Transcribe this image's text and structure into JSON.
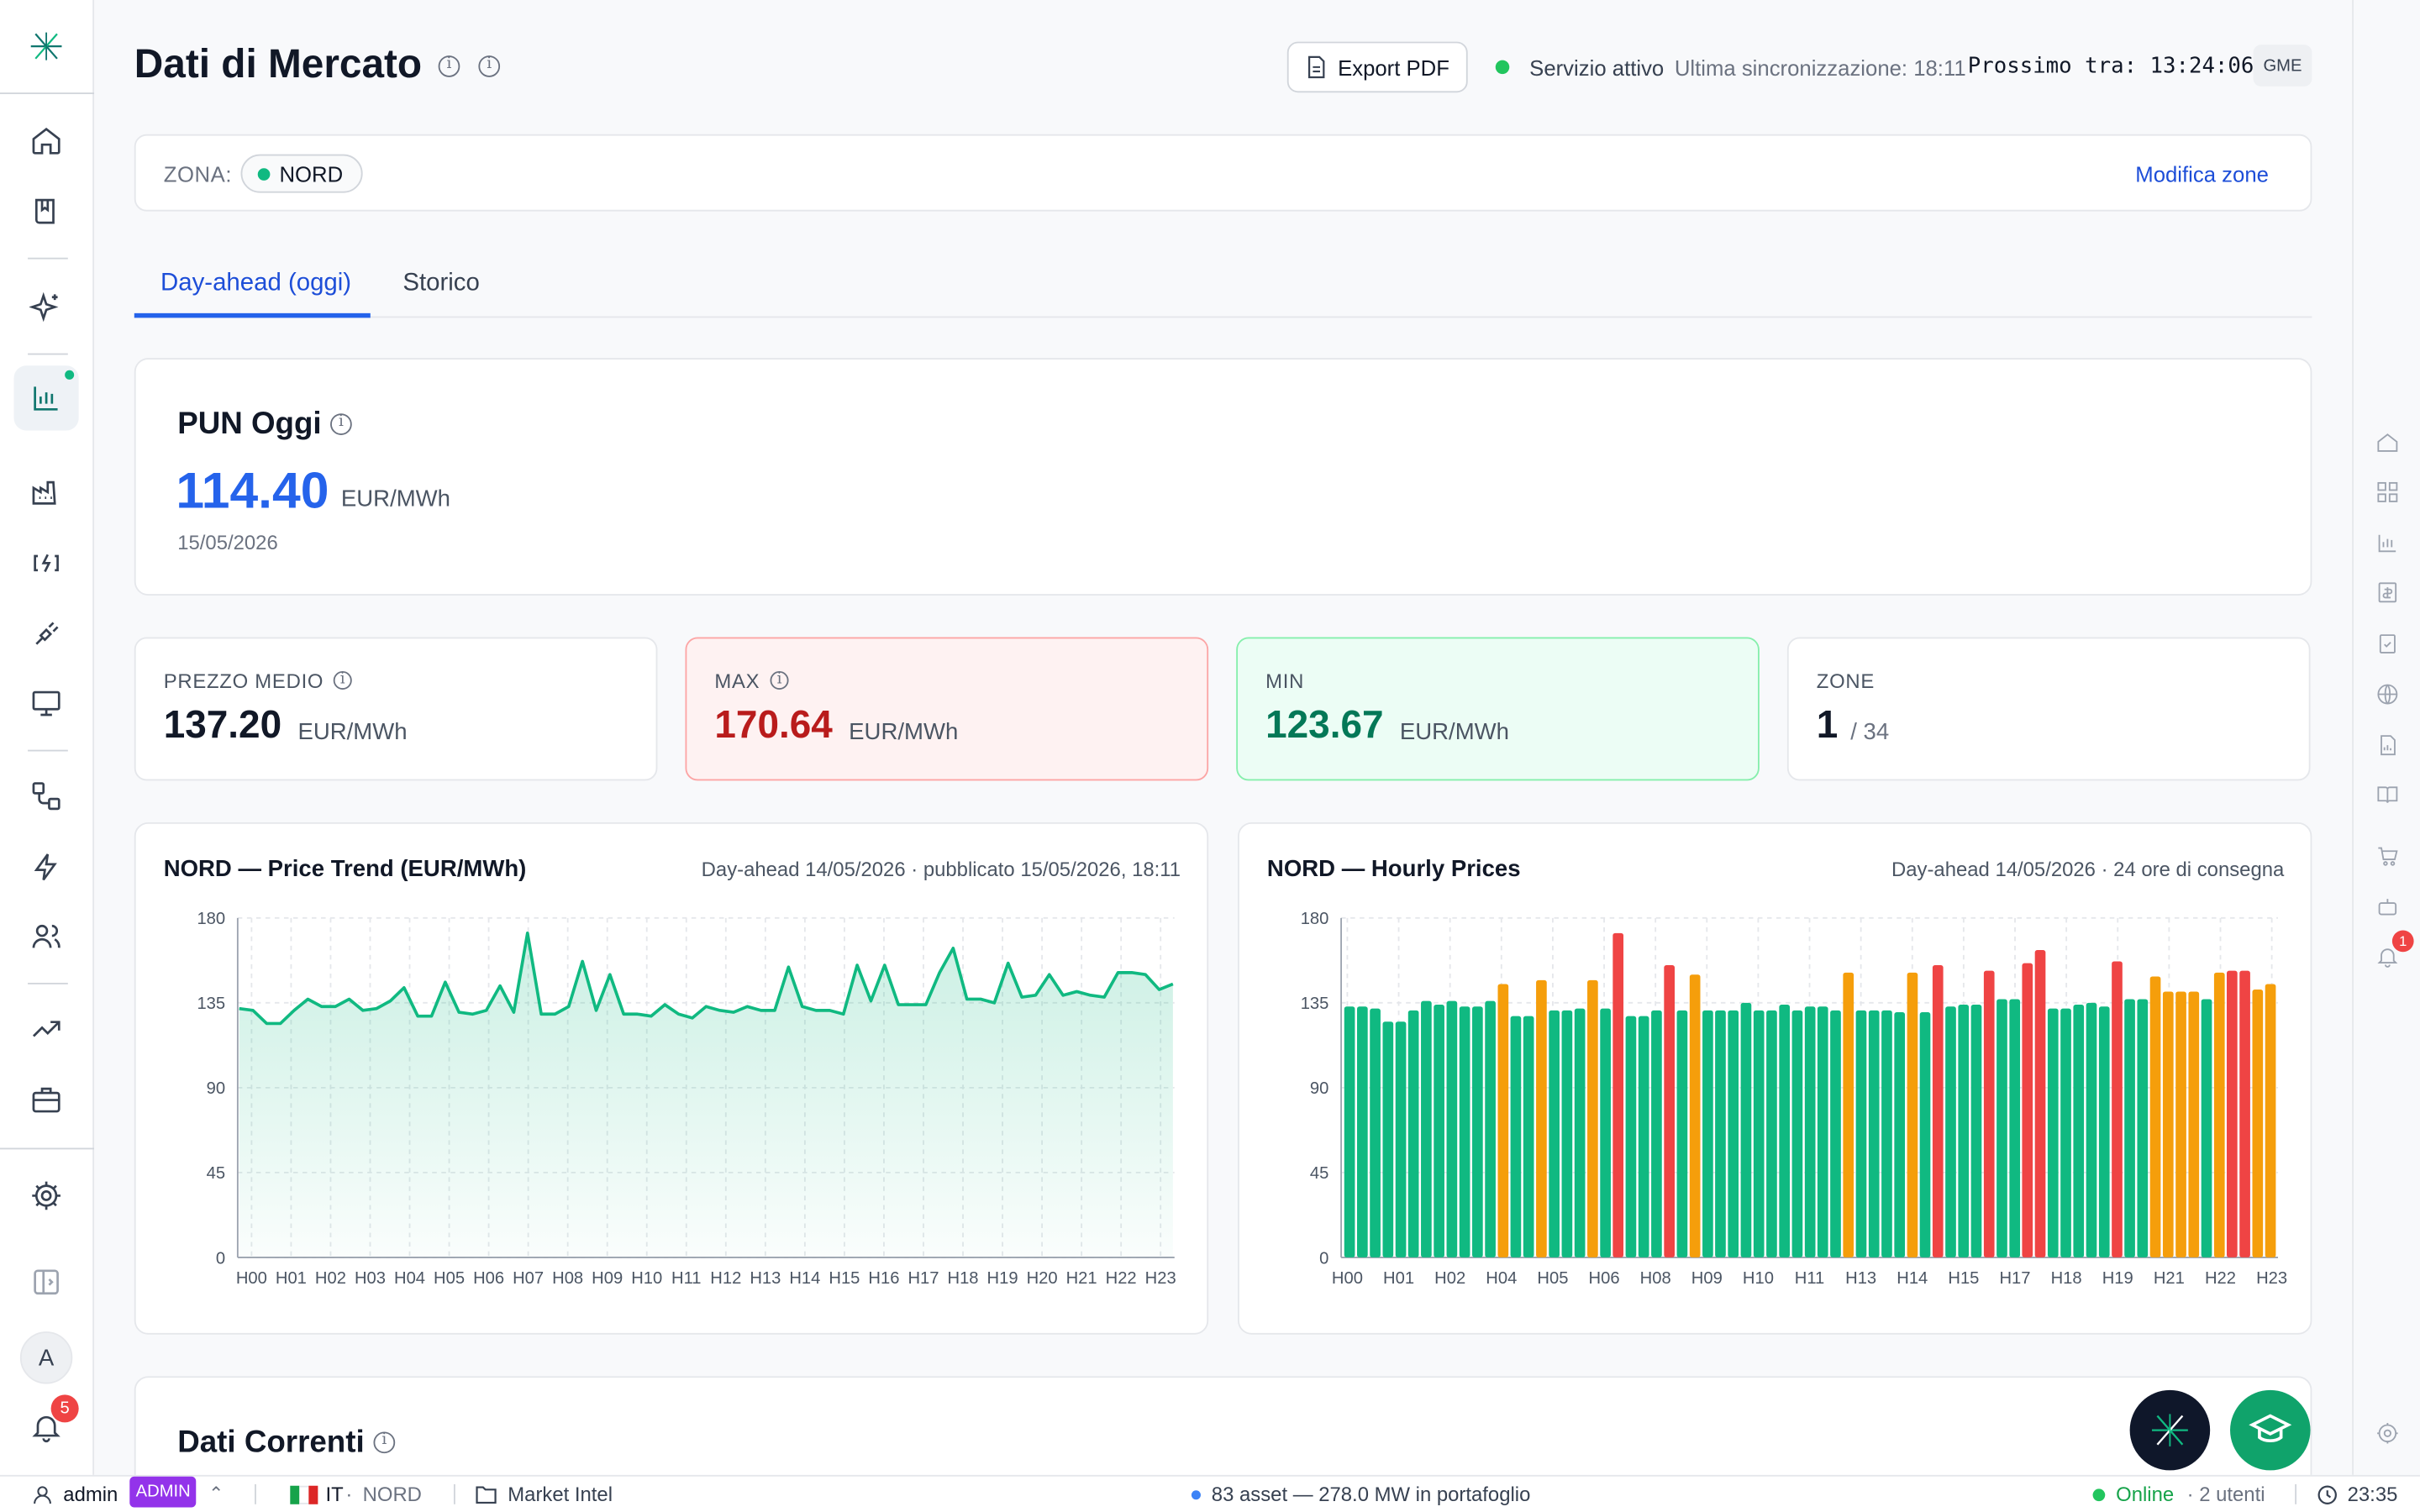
{
  "header": {
    "title": "Dati di Mercato",
    "export_label": "Export PDF",
    "status": "Servizio attivo",
    "last_sync": "Ultima sincronizzazione: 18:11",
    "next_sync": "Prossimo tra: 13:24:06",
    "source_badge": "GME"
  },
  "zone": {
    "label": "ZONA:",
    "selected": "NORD",
    "edit_label": "Modifica zone"
  },
  "tabs": [
    {
      "label": "Day-ahead (oggi)",
      "active": true
    },
    {
      "label": "Storico",
      "active": false
    }
  ],
  "pun": {
    "title": "PUN Oggi",
    "value": "114.40",
    "unit": "EUR/MWh",
    "date": "15/05/2026"
  },
  "stats": {
    "avg": {
      "label": "PREZZO MEDIO",
      "value": "137.20",
      "unit": "EUR/MWh"
    },
    "max": {
      "label": "MAX",
      "value": "170.64",
      "unit": "EUR/MWh"
    },
    "min": {
      "label": "MIN",
      "value": "123.67",
      "unit": "EUR/MWh"
    },
    "zones": {
      "label": "ZONE",
      "value": "1",
      "total": "/ 34"
    }
  },
  "charts": {
    "trend": {
      "title": "NORD — Price Trend (EUR/MWh)",
      "subtitle": "Day-ahead 14/05/2026 · pubblicato 15/05/2026, 18:11"
    },
    "hourly": {
      "title": "NORD — Hourly Prices",
      "subtitle": "Day-ahead 14/05/2026 · 24 ore di consegna"
    }
  },
  "chart_data": [
    {
      "type": "area",
      "title": "NORD — Price Trend (EUR/MWh)",
      "ylim": [
        0,
        180
      ],
      "yticks": [
        0,
        45,
        90,
        135,
        180
      ],
      "x_tick_labels": [
        "H00",
        "H01",
        "H02",
        "H03",
        "H04",
        "H05",
        "H06",
        "H07",
        "H08",
        "H09",
        "H10",
        "H11",
        "H12",
        "H13",
        "H14",
        "H15",
        "H16",
        "H17",
        "H18",
        "H19",
        "H20",
        "H21",
        "H22",
        "H23"
      ],
      "grid": true,
      "color": "#10b981",
      "values": [
        132,
        131,
        124,
        124,
        131,
        137,
        133,
        133,
        137,
        131,
        132,
        136,
        143,
        128,
        128,
        146,
        130,
        129,
        131,
        144,
        130,
        172,
        129,
        129,
        133,
        157,
        131,
        150,
        129,
        129,
        128,
        134,
        129,
        127,
        133,
        131,
        130,
        133,
        131,
        131,
        154,
        133,
        131,
        131,
        129,
        155,
        136,
        155,
        134,
        134,
        134,
        151,
        164,
        137,
        137,
        135,
        156,
        138,
        139,
        150,
        139,
        141,
        139,
        138,
        151,
        151,
        150,
        142,
        145
      ],
      "series_name": "NORD"
    },
    {
      "type": "bar",
      "title": "NORD — Hourly Prices",
      "ylim": [
        0,
        180
      ],
      "yticks": [
        0,
        45,
        90,
        135,
        180
      ],
      "x_tick_labels": [
        "H00",
        "H01",
        "H02",
        "H04",
        "H05",
        "H06",
        "H08",
        "H09",
        "H10",
        "H11",
        "H13",
        "H14",
        "H15",
        "H17",
        "H18",
        "H19",
        "H21",
        "H22",
        "H23"
      ],
      "grid": true,
      "colors": {
        "low": "#10b981",
        "mid": "#f59e0b",
        "high": "#ef4444"
      },
      "values": [
        133,
        133,
        132,
        125,
        125,
        131,
        136,
        134,
        136,
        133,
        133,
        136,
        145,
        128,
        128,
        147,
        131,
        131,
        132,
        147,
        132,
        172,
        128,
        128,
        131,
        155,
        131,
        150,
        131,
        131,
        131,
        135,
        131,
        131,
        134,
        131,
        133,
        133,
        131,
        151,
        131,
        131,
        131,
        130,
        151,
        130,
        155,
        133,
        134,
        134,
        152,
        137,
        137,
        156,
        163,
        132,
        132,
        134,
        135,
        133,
        157,
        137,
        137,
        149,
        141,
        141,
        141,
        137,
        151,
        152,
        152,
        142,
        145
      ]
    }
  ],
  "current_data": {
    "title": "Dati Correnti"
  },
  "sidebar": {
    "avatar": "A",
    "notifications": "5"
  },
  "rail": {
    "notifications": "1"
  },
  "statusbar": {
    "user": "admin",
    "role": "ADMIN",
    "country": "IT",
    "zone": "NORD",
    "folder": "Market Intel",
    "portfolio": "83 asset — 278.0 MW in portafoglio",
    "online": "Online",
    "users": "· 2 utenti",
    "time": "23:35"
  }
}
